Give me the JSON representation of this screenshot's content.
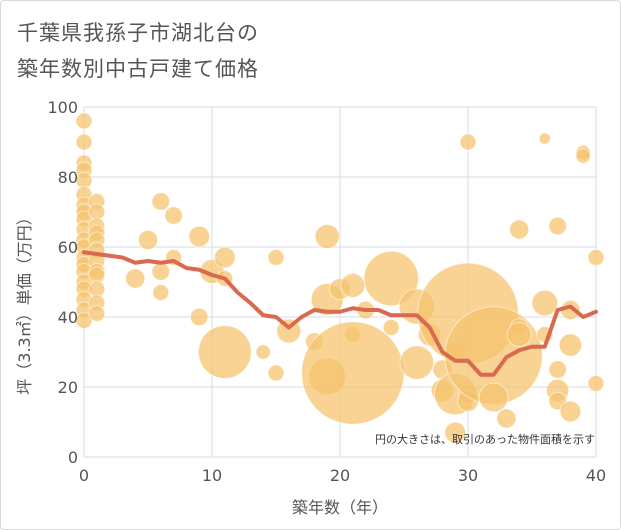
{
  "title_line1": "千葉県我孫子市湖北台の",
  "title_line2": "築年数別中古戸建て価格",
  "chart_data": {
    "type": "scatter",
    "xlabel": "築年数（年）",
    "ylabel": "坪（3.3㎡）単価（万円）",
    "xlim": [
      0,
      40
    ],
    "ylim": [
      0,
      100
    ],
    "xticks": [
      "0",
      "10",
      "20",
      "30",
      "40"
    ],
    "yticks": [
      "0",
      "20",
      "40",
      "60",
      "80",
      "100"
    ],
    "grid": true,
    "note": "円の大きさは、取引のあった物件面積を示す",
    "bubble_color": "#f5c26b",
    "line_color": "#d9694f",
    "points": [
      {
        "x": 0,
        "y": 96,
        "s": 1
      },
      {
        "x": 0,
        "y": 90,
        "s": 1
      },
      {
        "x": 0,
        "y": 84,
        "s": 1
      },
      {
        "x": 0,
        "y": 82,
        "s": 1
      },
      {
        "x": 0,
        "y": 79,
        "s": 1
      },
      {
        "x": 0,
        "y": 75,
        "s": 1
      },
      {
        "x": 0,
        "y": 72,
        "s": 1
      },
      {
        "x": 0,
        "y": 70,
        "s": 1
      },
      {
        "x": 0,
        "y": 68,
        "s": 1
      },
      {
        "x": 0,
        "y": 65,
        "s": 1
      },
      {
        "x": 0,
        "y": 62,
        "s": 1
      },
      {
        "x": 0,
        "y": 60,
        "s": 1
      },
      {
        "x": 0,
        "y": 57,
        "s": 1
      },
      {
        "x": 0,
        "y": 55,
        "s": 1
      },
      {
        "x": 0,
        "y": 53,
        "s": 1
      },
      {
        "x": 0,
        "y": 50,
        "s": 1
      },
      {
        "x": 0,
        "y": 48,
        "s": 1
      },
      {
        "x": 0,
        "y": 45,
        "s": 1
      },
      {
        "x": 0,
        "y": 42,
        "s": 1
      },
      {
        "x": 0,
        "y": 39,
        "s": 1
      },
      {
        "x": 1,
        "y": 73,
        "s": 1
      },
      {
        "x": 1,
        "y": 70,
        "s": 1
      },
      {
        "x": 1,
        "y": 66,
        "s": 1
      },
      {
        "x": 1,
        "y": 64,
        "s": 1
      },
      {
        "x": 1,
        "y": 62,
        "s": 1
      },
      {
        "x": 1,
        "y": 59,
        "s": 1
      },
      {
        "x": 1,
        "y": 56,
        "s": 1
      },
      {
        "x": 1,
        "y": 53,
        "s": 1
      },
      {
        "x": 1,
        "y": 52,
        "s": 1
      },
      {
        "x": 1,
        "y": 48,
        "s": 1
      },
      {
        "x": 1,
        "y": 44,
        "s": 1
      },
      {
        "x": 1,
        "y": 41,
        "s": 1
      },
      {
        "x": 4,
        "y": 51,
        "s": 1.2
      },
      {
        "x": 5,
        "y": 62,
        "s": 1.2
      },
      {
        "x": 6,
        "y": 73,
        "s": 1.1
      },
      {
        "x": 6,
        "y": 53,
        "s": 1.1
      },
      {
        "x": 6,
        "y": 47,
        "s": 1
      },
      {
        "x": 7,
        "y": 69,
        "s": 1.1
      },
      {
        "x": 7,
        "y": 57,
        "s": 1
      },
      {
        "x": 9,
        "y": 63,
        "s": 1.3
      },
      {
        "x": 9,
        "y": 40,
        "s": 1.1
      },
      {
        "x": 10,
        "y": 53,
        "s": 1.5
      },
      {
        "x": 11,
        "y": 57,
        "s": 1.3
      },
      {
        "x": 11,
        "y": 51,
        "s": 1
      },
      {
        "x": 11,
        "y": 30,
        "s": 3.3
      },
      {
        "x": 14,
        "y": 30,
        "s": 0.9
      },
      {
        "x": 15,
        "y": 57,
        "s": 1
      },
      {
        "x": 15,
        "y": 24,
        "s": 1
      },
      {
        "x": 16,
        "y": 36,
        "s": 1.5
      },
      {
        "x": 18,
        "y": 33,
        "s": 1.1
      },
      {
        "x": 19,
        "y": 63,
        "s": 1.5
      },
      {
        "x": 19,
        "y": 45,
        "s": 2
      },
      {
        "x": 19,
        "y": 23,
        "s": 2.3
      },
      {
        "x": 20,
        "y": 48,
        "s": 1.3
      },
      {
        "x": 21,
        "y": 49,
        "s": 1.5
      },
      {
        "x": 21,
        "y": 35,
        "s": 1
      },
      {
        "x": 21,
        "y": 24,
        "s": 6.4
      },
      {
        "x": 22,
        "y": 42,
        "s": 1.1
      },
      {
        "x": 24,
        "y": 51,
        "s": 3.4
      },
      {
        "x": 24,
        "y": 37,
        "s": 1
      },
      {
        "x": 26,
        "y": 43,
        "s": 2.2
      },
      {
        "x": 26,
        "y": 27,
        "s": 2.1
      },
      {
        "x": 27,
        "y": 35,
        "s": 1.4
      },
      {
        "x": 28,
        "y": 25,
        "s": 1.2
      },
      {
        "x": 28,
        "y": 19,
        "s": 1.4
      },
      {
        "x": 29,
        "y": 30,
        "s": 1.2
      },
      {
        "x": 29,
        "y": 18,
        "s": 2.6
      },
      {
        "x": 29,
        "y": 7,
        "s": 1.3
      },
      {
        "x": 30,
        "y": 90,
        "s": 1
      },
      {
        "x": 30,
        "y": 41,
        "s": 6.3
      },
      {
        "x": 30,
        "y": 18,
        "s": 1.2
      },
      {
        "x": 30,
        "y": 16,
        "s": 1.3
      },
      {
        "x": 32,
        "y": 29,
        "s": 6.1
      },
      {
        "x": 32,
        "y": 17,
        "s": 1.8
      },
      {
        "x": 33,
        "y": 11,
        "s": 1.2
      },
      {
        "x": 34,
        "y": 65,
        "s": 1.2
      },
      {
        "x": 34,
        "y": 37,
        "s": 1.1
      },
      {
        "x": 34,
        "y": 35,
        "s": 1.5
      },
      {
        "x": 36,
        "y": 91,
        "s": 0.7
      },
      {
        "x": 36,
        "y": 44,
        "s": 1.6
      },
      {
        "x": 36,
        "y": 35,
        "s": 1
      },
      {
        "x": 37,
        "y": 66,
        "s": 1.1
      },
      {
        "x": 37,
        "y": 25,
        "s": 1.1
      },
      {
        "x": 37,
        "y": 19,
        "s": 1.4
      },
      {
        "x": 37,
        "y": 16,
        "s": 1.1
      },
      {
        "x": 38,
        "y": 42,
        "s": 1.2
      },
      {
        "x": 38,
        "y": 32,
        "s": 1.4
      },
      {
        "x": 38,
        "y": 13,
        "s": 1.3
      },
      {
        "x": 39,
        "y": 87,
        "s": 0.9
      },
      {
        "x": 39,
        "y": 86,
        "s": 0.9
      },
      {
        "x": 40,
        "y": 57,
        "s": 1
      },
      {
        "x": 40,
        "y": 21,
        "s": 1
      }
    ],
    "trend": {
      "x": [
        0,
        1,
        2,
        3,
        4,
        5,
        6,
        7,
        8,
        9,
        10,
        11,
        12,
        13,
        14,
        15,
        16,
        17,
        18,
        19,
        20,
        21,
        22,
        23,
        24,
        25,
        26,
        27,
        28,
        29,
        30,
        31,
        32,
        33,
        34,
        35,
        36,
        37,
        38,
        39,
        40
      ],
      "y": [
        58.5,
        58,
        57.5,
        57,
        55.5,
        56,
        55.5,
        56,
        54,
        53.5,
        52,
        51,
        47,
        44,
        40.5,
        40,
        37,
        40,
        42,
        41.5,
        41.5,
        42.5,
        42,
        42,
        40.5,
        40.5,
        40.5,
        37,
        30,
        27.5,
        27.5,
        23.5,
        23.5,
        28.5,
        30.5,
        31.5,
        31.5,
        42,
        43,
        40,
        41.5
      ]
    }
  }
}
